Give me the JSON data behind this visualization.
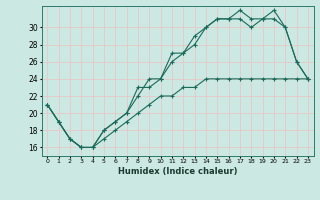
{
  "title": "",
  "xlabel": "Humidex (Indice chaleur)",
  "background_color": "#cbe8e3",
  "grid_color": "#e8c8c8",
  "line_color": "#1a6b5a",
  "xlim": [
    -0.5,
    23.5
  ],
  "ylim": [
    15.0,
    32.5
  ],
  "xticks": [
    0,
    1,
    2,
    3,
    4,
    5,
    6,
    7,
    8,
    9,
    10,
    11,
    12,
    13,
    14,
    15,
    16,
    17,
    18,
    19,
    20,
    21,
    22,
    23
  ],
  "yticks": [
    16,
    18,
    20,
    22,
    24,
    26,
    28,
    30
  ],
  "series1_x": [
    0,
    1,
    2,
    3,
    4,
    5,
    6,
    7,
    8,
    9,
    10,
    11,
    12,
    13,
    14,
    15,
    16,
    17,
    18,
    19,
    20,
    21,
    22,
    23
  ],
  "series1_y": [
    21,
    19,
    17,
    16,
    16,
    18,
    19,
    20,
    23,
    23,
    24,
    27,
    27,
    29,
    30,
    31,
    31,
    32,
    31,
    31,
    32,
    30,
    26,
    24
  ],
  "series2_x": [
    0,
    1,
    2,
    3,
    4,
    5,
    6,
    7,
    8,
    9,
    10,
    11,
    12,
    13,
    14,
    15,
    16,
    17,
    18,
    19,
    20,
    21,
    22,
    23
  ],
  "series2_y": [
    21,
    19,
    17,
    16,
    16,
    18,
    19,
    20,
    22,
    24,
    24,
    26,
    27,
    28,
    30,
    31,
    31,
    31,
    30,
    31,
    31,
    30,
    26,
    24
  ],
  "series3_x": [
    0,
    1,
    2,
    3,
    4,
    5,
    6,
    7,
    8,
    9,
    10,
    11,
    12,
    13,
    14,
    15,
    16,
    17,
    18,
    19,
    20,
    21,
    22,
    23
  ],
  "series3_y": [
    21,
    19,
    17,
    16,
    16,
    17,
    18,
    19,
    20,
    21,
    22,
    22,
    23,
    23,
    24,
    24,
    24,
    24,
    24,
    24,
    24,
    24,
    24,
    24
  ]
}
